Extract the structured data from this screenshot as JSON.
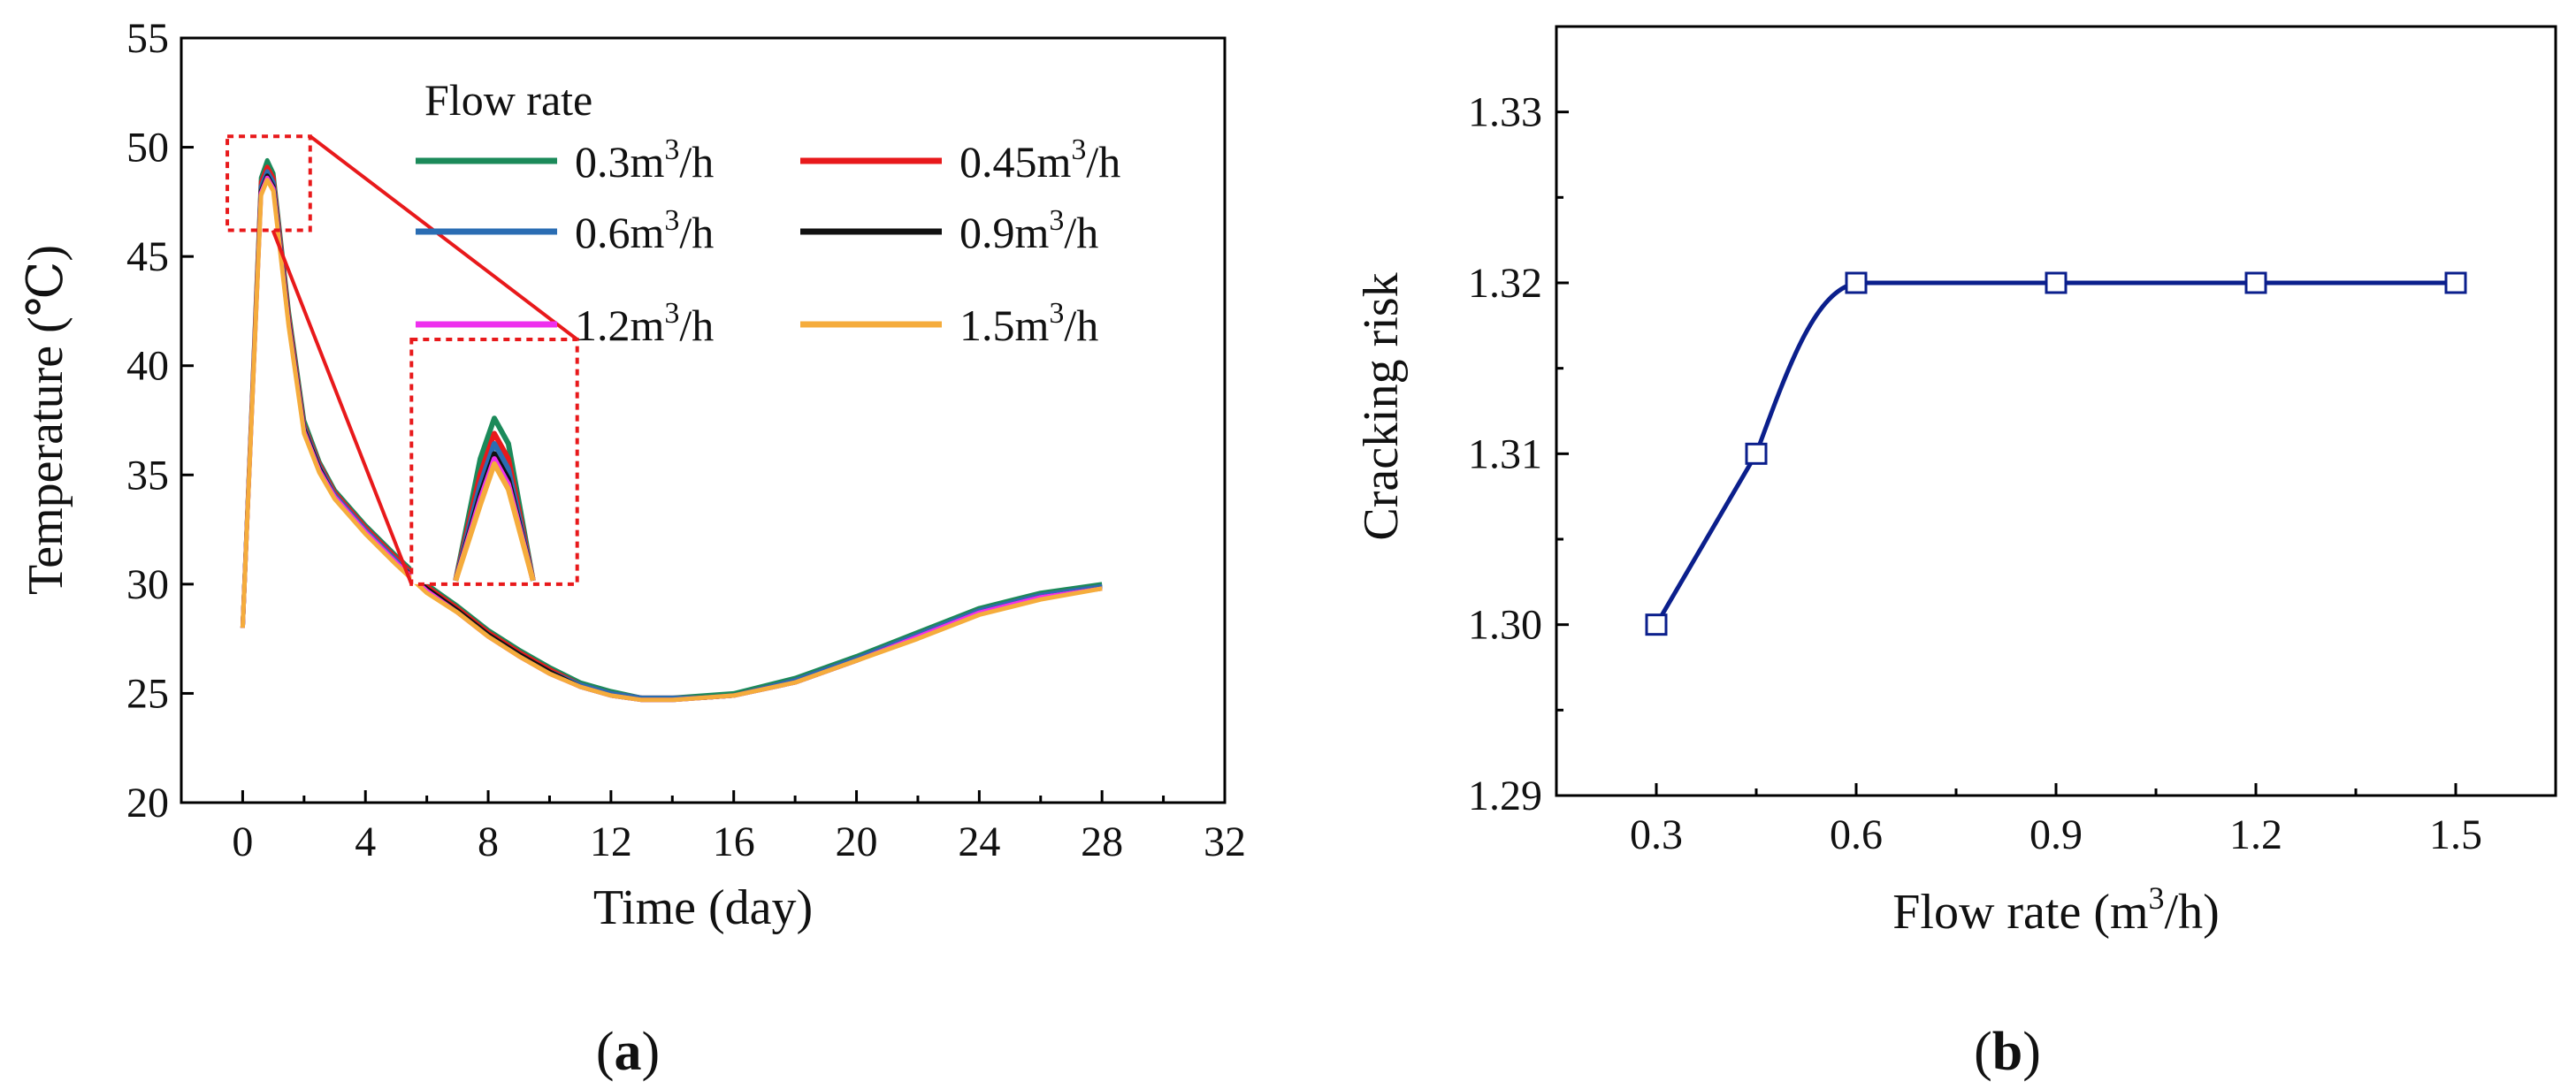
{
  "chart_data": [
    {
      "panel_label": "a",
      "type": "line",
      "xlabel": "Time (day)",
      "ylabel": "Temperature (℃)",
      "xlim": [
        -2,
        32
      ],
      "ylim": [
        20,
        55
      ],
      "xticks": [
        0,
        4,
        8,
        12,
        16,
        20,
        24,
        28,
        32
      ],
      "yticks": [
        20,
        25,
        30,
        35,
        40,
        45,
        50,
        55
      ],
      "legend_title": "Flow rate",
      "x": [
        0,
        0.6,
        0.8,
        1.0,
        1.5,
        2,
        2.5,
        3,
        4,
        5,
        6,
        7,
        8,
        9,
        10,
        11,
        12,
        13,
        14,
        15,
        16,
        18,
        20,
        22,
        24,
        26,
        28
      ],
      "series": [
        {
          "name": "0.3",
          "unit": "m",
          "unit_sup": "3",
          "unit_tail": "/h",
          "color": "#1b8a5a",
          "values": [
            28,
            48.6,
            49.4,
            48.8,
            42.5,
            37.5,
            35.6,
            34.3,
            32.7,
            31.3,
            30.0,
            29.0,
            27.9,
            27.0,
            26.2,
            25.5,
            25.1,
            24.8,
            24.8,
            24.9,
            25.0,
            25.7,
            26.7,
            27.8,
            28.9,
            29.6,
            30.0
          ]
        },
        {
          "name": "0.45",
          "unit": "m",
          "unit_sup": "3",
          "unit_tail": "/h",
          "color": "#e8191b",
          "values": [
            28,
            48.4,
            49.1,
            48.6,
            42.3,
            37.3,
            35.5,
            34.2,
            32.6,
            31.2,
            29.9,
            28.9,
            27.8,
            26.9,
            26.1,
            25.4,
            25.0,
            24.8,
            24.8,
            24.8,
            24.9,
            25.6,
            26.6,
            27.7,
            28.8,
            29.5,
            29.9
          ]
        },
        {
          "name": "0.6",
          "unit": "m",
          "unit_sup": "3",
          "unit_tail": "/h",
          "color": "#2a6db3",
          "values": [
            28,
            48.2,
            48.9,
            48.4,
            42.1,
            37.2,
            35.4,
            34.1,
            32.5,
            31.1,
            29.8,
            28.8,
            27.7,
            26.8,
            26.0,
            25.4,
            25.0,
            24.8,
            24.8,
            24.8,
            24.9,
            25.6,
            26.6,
            27.7,
            28.8,
            29.5,
            29.9
          ]
        },
        {
          "name": "0.9",
          "unit": "m",
          "unit_sup": "3",
          "unit_tail": "/h",
          "color": "#111111",
          "values": [
            28,
            48.0,
            48.7,
            48.2,
            42.0,
            37.1,
            35.3,
            34.0,
            32.4,
            31.0,
            29.8,
            28.8,
            27.7,
            26.8,
            26.0,
            25.3,
            24.9,
            24.7,
            24.7,
            24.8,
            24.9,
            25.5,
            26.5,
            27.6,
            28.7,
            29.4,
            29.8
          ]
        },
        {
          "name": "1.2",
          "unit": "m",
          "unit_sup": "3",
          "unit_tail": "/h",
          "color": "#ee30ee",
          "values": [
            28,
            47.9,
            48.6,
            48.1,
            41.9,
            37.0,
            35.2,
            34.0,
            32.4,
            31.0,
            29.7,
            28.7,
            27.6,
            26.7,
            25.9,
            25.3,
            24.9,
            24.7,
            24.7,
            24.8,
            24.9,
            25.5,
            26.5,
            27.6,
            28.7,
            29.4,
            29.8
          ]
        },
        {
          "name": "1.5",
          "unit": "m",
          "unit_sup": "3",
          "unit_tail": "/h",
          "color": "#f5ac3c",
          "values": [
            28,
            47.8,
            48.5,
            48.0,
            41.8,
            36.9,
            35.1,
            33.9,
            32.3,
            30.9,
            29.6,
            28.7,
            27.6,
            26.7,
            25.9,
            25.3,
            24.9,
            24.7,
            24.7,
            24.8,
            24.9,
            25.5,
            26.5,
            27.5,
            28.6,
            29.3,
            29.8
          ]
        }
      ],
      "zoom_box_x": [
        -0.5,
        2.2
      ],
      "zoom_box_y": [
        46.2,
        50.5
      ]
    },
    {
      "panel_label": "b",
      "type": "line",
      "xlabel": "Flow rate (m",
      "xlabel_sup": "3",
      "xlabel_tail": "/h)",
      "ylabel": "Cracking risk",
      "xlim": [
        0.15,
        1.65
      ],
      "ylim": [
        1.29,
        1.335
      ],
      "xticks": [
        "0.3",
        "0.6",
        "0.9",
        "1.2",
        "1.5"
      ],
      "yticks": [
        "1.29",
        "1.30",
        "1.31",
        "1.32",
        "1.33"
      ],
      "x": [
        0.3,
        0.45,
        0.6,
        0.9,
        1.2,
        1.5
      ],
      "values": [
        1.3,
        1.31,
        1.32,
        1.32,
        1.32,
        1.32
      ],
      "color": "#0b1f8c",
      "marker": "open-square"
    }
  ]
}
